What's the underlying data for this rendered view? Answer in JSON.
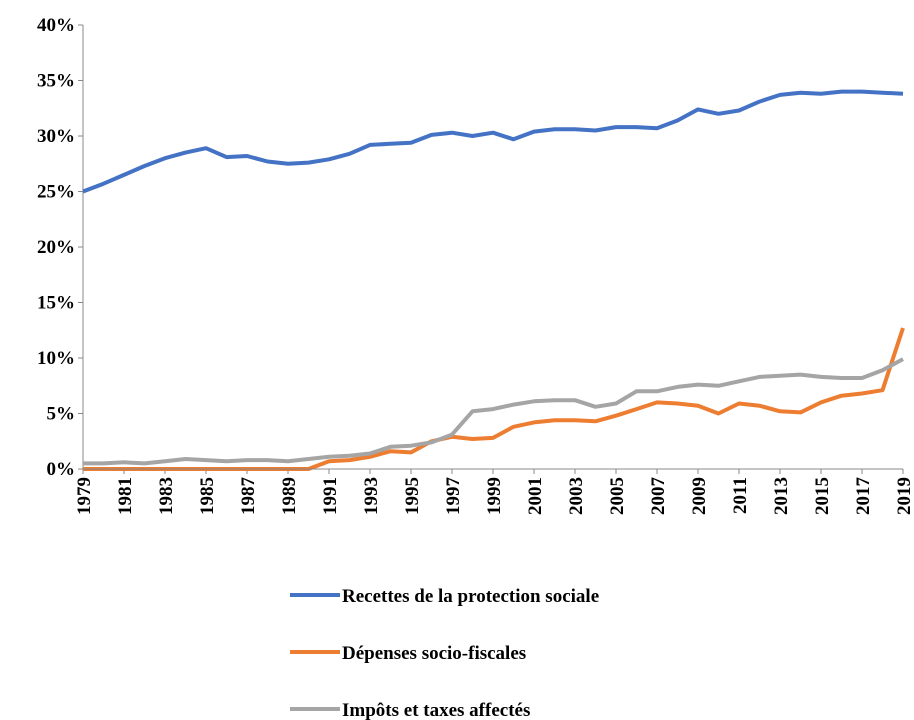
{
  "chart_data": {
    "type": "line",
    "x": [
      1979,
      1980,
      1981,
      1982,
      1983,
      1984,
      1985,
      1986,
      1987,
      1988,
      1989,
      1990,
      1991,
      1992,
      1993,
      1994,
      1995,
      1996,
      1997,
      1998,
      1999,
      2000,
      2001,
      2002,
      2003,
      2004,
      2005,
      2006,
      2007,
      2008,
      2009,
      2010,
      2011,
      2012,
      2013,
      2014,
      2015,
      2016,
      2017,
      2018,
      2019
    ],
    "xlim": [
      1979,
      2019
    ],
    "xticks": [
      1979,
      1981,
      1983,
      1985,
      1987,
      1989,
      1991,
      1993,
      1995,
      1997,
      1999,
      2001,
      2003,
      2005,
      2007,
      2009,
      2011,
      2013,
      2015,
      2017,
      2019
    ],
    "ylim": [
      0,
      40
    ],
    "yticks": [
      {
        "value": 0,
        "label": "0%"
      },
      {
        "value": 5,
        "label": "5%"
      },
      {
        "value": 10,
        "label": "10%"
      },
      {
        "value": 15,
        "label": "15%"
      },
      {
        "value": 20,
        "label": "20%"
      },
      {
        "value": 25,
        "label": "25%"
      },
      {
        "value": 30,
        "label": "30%"
      },
      {
        "value": 35,
        "label": "35%"
      },
      {
        "value": 40,
        "label": "40%"
      }
    ],
    "legend": "bottom",
    "series": [
      {
        "name": "Recettes de la protection sociale",
        "color": "#4472c4",
        "values": [
          25.0,
          25.7,
          26.5,
          27.3,
          28.0,
          28.5,
          28.9,
          28.1,
          28.2,
          27.7,
          27.5,
          27.6,
          27.9,
          28.4,
          29.2,
          29.3,
          29.4,
          30.1,
          30.3,
          30.0,
          30.3,
          29.7,
          30.4,
          30.6,
          30.6,
          30.5,
          30.8,
          30.8,
          30.7,
          31.4,
          32.4,
          32.0,
          32.3,
          33.1,
          33.7,
          33.9,
          33.8,
          34.0,
          34.0,
          33.9,
          33.8
        ]
      },
      {
        "name": "Dépenses socio-fiscales",
        "color": "#ed7d31",
        "values": [
          0,
          0,
          0,
          0,
          0,
          0,
          0,
          0,
          0,
          0,
          0,
          0,
          0.7,
          0.8,
          1.1,
          1.6,
          1.5,
          2.5,
          2.9,
          2.7,
          2.8,
          3.8,
          4.2,
          4.4,
          4.4,
          4.3,
          4.8,
          5.4,
          6.0,
          5.9,
          5.7,
          5.0,
          5.9,
          5.7,
          5.2,
          5.1,
          6.0,
          6.6,
          6.8,
          7.1,
          12.7
        ]
      },
      {
        "name": "Impôts et taxes affectés",
        "color": "#a5a5a5",
        "values": [
          0.5,
          0.5,
          0.6,
          0.5,
          0.7,
          0.9,
          0.8,
          0.7,
          0.8,
          0.8,
          0.7,
          0.9,
          1.1,
          1.2,
          1.4,
          2.0,
          2.1,
          2.4,
          3.1,
          5.2,
          5.4,
          5.8,
          6.1,
          6.2,
          6.2,
          5.6,
          5.9,
          7.0,
          7.0,
          7.4,
          7.6,
          7.5,
          7.9,
          8.3,
          8.4,
          8.5,
          8.3,
          8.2,
          8.2,
          8.9,
          9.9
        ]
      }
    ]
  }
}
